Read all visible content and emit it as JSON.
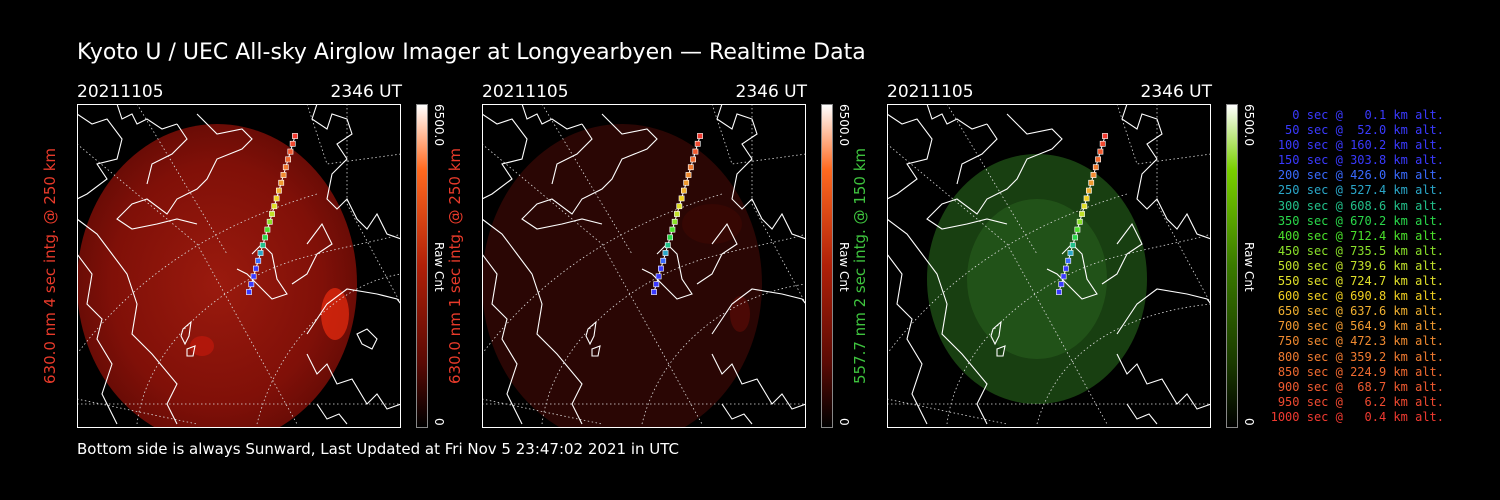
{
  "title": "Kyoto U / UEC All-sky Airglow Imager at Longyearbyen — Realtime Data",
  "footer": "Bottom side is always Sunward, Last Updated at Fri Nov  5 23:47:02 2021 in UTC",
  "panels": [
    {
      "date": "20211105",
      "time": "2346 UT",
      "side_label": "630.0 nm 4 sec intg. @ 250 km",
      "label_color": "#e83a2a",
      "colorbar_max": "6500.0",
      "colorbar_min": "0",
      "colorbar_unit": "Raw Cnt",
      "colorbar_color": "#ff5a10",
      "glow_color": "#8e1208",
      "glow_level": 0.72
    },
    {
      "date": "20211105",
      "time": "2346 UT",
      "side_label": "630.0 nm 1 sec intg. @ 250 km",
      "label_color": "#e83a2a",
      "colorbar_max": "6500.0",
      "colorbar_min": "0",
      "colorbar_unit": "Raw Cnt",
      "colorbar_color": "#ff5a10",
      "glow_color": "#3d0806",
      "glow_level": 0.55
    },
    {
      "date": "20211105",
      "time": "2346 UT",
      "side_label": "557.7 nm 2 sec intg. @ 150 km",
      "label_color": "#3ec33e",
      "colorbar_max": "6500.0",
      "colorbar_min": "0",
      "colorbar_unit": "Raw Cnt",
      "colorbar_color": "#7ad000",
      "glow_color": "#1f5a16",
      "glow_level": 0.6
    }
  ],
  "legend": [
    {
      "text": "0 sec @   0.1 km alt.",
      "color": "#3a3aff"
    },
    {
      "text": "50 sec @  52.0 km alt.",
      "color": "#3a3aff"
    },
    {
      "text": "100 sec @ 160.2 km alt.",
      "color": "#3a3aff"
    },
    {
      "text": "150 sec @ 303.8 km alt.",
      "color": "#3a3aff"
    },
    {
      "text": "200 sec @ 426.0 km alt.",
      "color": "#3a6aff"
    },
    {
      "text": "250 sec @ 527.4 km alt.",
      "color": "#2aa6c8"
    },
    {
      "text": "300 sec @ 608.6 km alt.",
      "color": "#22c08a"
    },
    {
      "text": "350 sec @ 670.2 km alt.",
      "color": "#2ad84a"
    },
    {
      "text": "400 sec @ 712.4 km alt.",
      "color": "#4ae02a"
    },
    {
      "text": "450 sec @ 735.5 km alt.",
      "color": "#8ae02a"
    },
    {
      "text": "500 sec @ 739.6 km alt.",
      "color": "#c0e02a"
    },
    {
      "text": "550 sec @ 724.7 km alt.",
      "color": "#e0e02a"
    },
    {
      "text": "600 sec @ 690.8 km alt.",
      "color": "#f0d020"
    },
    {
      "text": "650 sec @ 637.6 km alt.",
      "color": "#f0b030"
    },
    {
      "text": "700 sec @ 564.9 km alt.",
      "color": "#f09a30"
    },
    {
      "text": "750 sec @ 472.3 km alt.",
      "color": "#f08a30"
    },
    {
      "text": "800 sec @ 359.2 km alt.",
      "color": "#f07a30"
    },
    {
      "text": "850 sec @ 224.9 km alt.",
      "color": "#f06a30"
    },
    {
      "text": "900 sec @  68.7 km alt.",
      "color": "#f05a30"
    },
    {
      "text": "950 sec @   6.2 km alt.",
      "color": "#f04a30"
    },
    {
      "text": "1000 sec @   0.4 km alt.",
      "color": "#f03a30"
    }
  ]
}
